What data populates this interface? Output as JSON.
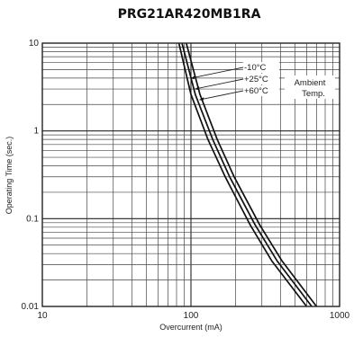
{
  "chart_data": {
    "type": "line",
    "title": "PRG21AR420MB1RA",
    "xlabel": "Overcurrent (mA)",
    "ylabel": "Operating Time (sec.)",
    "xscale": "log",
    "yscale": "log",
    "xlim": [
      10,
      1000
    ],
    "ylim": [
      0.01,
      10
    ],
    "grid": true,
    "x_ticks": [
      {
        "value": 10,
        "label": "10"
      },
      {
        "value": 100,
        "label": "100"
      },
      {
        "value": 1000,
        "label": "1000"
      }
    ],
    "y_ticks": [
      {
        "value": 10,
        "label": "10"
      },
      {
        "value": 1,
        "label": "1"
      },
      {
        "value": 0.1,
        "label": "0.1"
      },
      {
        "value": 0.01,
        "label": "0.01"
      }
    ],
    "series": [
      {
        "name": "-10°C",
        "x": [
          83,
          100,
          130,
          170,
          250,
          350,
          600
        ],
        "y": [
          10,
          2.6,
          0.8,
          0.3,
          0.085,
          0.033,
          0.01
        ]
      },
      {
        "name": "+25°C",
        "x": [
          87,
          107,
          140,
          182,
          270,
          380,
          650
        ],
        "y": [
          10,
          2.6,
          0.8,
          0.3,
          0.085,
          0.033,
          0.01
        ]
      },
      {
        "name": "+60°C",
        "x": [
          93,
          115,
          150,
          195,
          290,
          410,
          700
        ],
        "y": [
          10,
          2.6,
          0.8,
          0.3,
          0.085,
          0.033,
          0.01
        ]
      }
    ],
    "annotation": {
      "line1": "Ambient",
      "line2": "Temp."
    }
  }
}
